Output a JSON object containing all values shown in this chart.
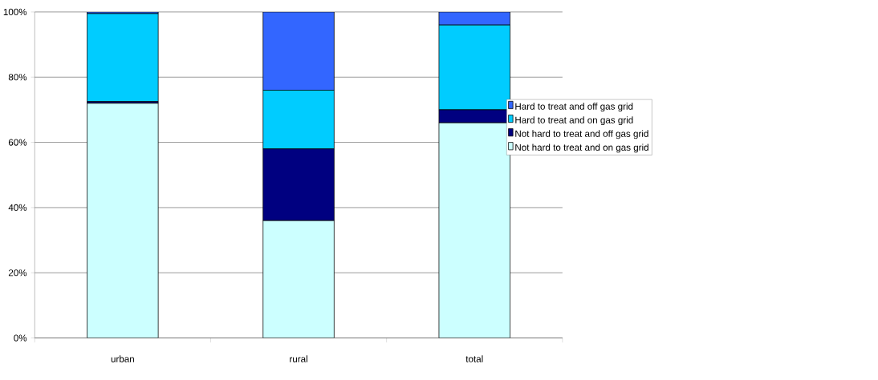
{
  "chart_data": {
    "type": "bar",
    "stacked": true,
    "categories": [
      "urban",
      "rural",
      "total"
    ],
    "series": [
      {
        "name": "Not hard to treat and on gas grid",
        "color": "#ccffff",
        "values": [
          72,
          36,
          66
        ]
      },
      {
        "name": "Not hard to treat and off gas grid",
        "color": "#000080",
        "values": [
          0.5,
          22,
          4
        ]
      },
      {
        "name": "Hard to treat and on gas grid",
        "color": "#00ccff",
        "values": [
          27,
          18,
          26
        ]
      },
      {
        "name": "Hard to treat and off gas grid",
        "color": "#3366ff",
        "values": [
          0.5,
          24,
          4
        ]
      }
    ],
    "ylim": [
      0,
      100
    ],
    "yticks": [
      {
        "value": 0,
        "label": "0%"
      },
      {
        "value": 20,
        "label": "20%"
      },
      {
        "value": 40,
        "label": "40%"
      },
      {
        "value": 60,
        "label": "60%"
      },
      {
        "value": 80,
        "label": "80%"
      },
      {
        "value": 100,
        "label": "100%"
      }
    ],
    "grid": "y",
    "legend": "right"
  }
}
